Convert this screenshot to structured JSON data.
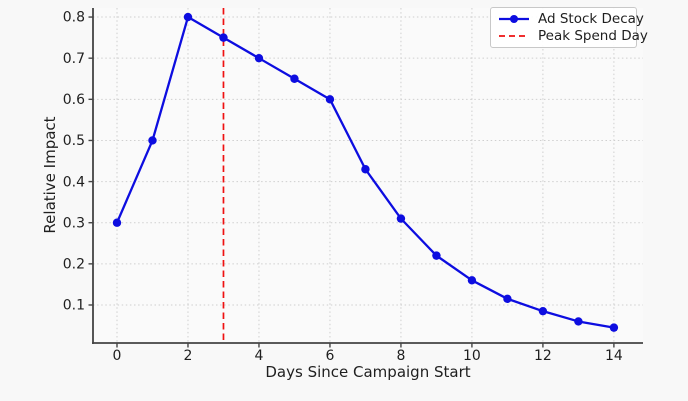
{
  "chart_data": {
    "type": "line",
    "title": "",
    "xlabel": "Days Since Campaign Start",
    "ylabel": "Relative Impact",
    "x": [
      0,
      1,
      2,
      3,
      4,
      5,
      6,
      7,
      8,
      9,
      10,
      11,
      12,
      13,
      14
    ],
    "series": [
      {
        "name": "Ad Stock Decay",
        "color": "#0d0de0",
        "marker": "circle",
        "line_style": "solid",
        "values": [
          0.3,
          0.5,
          0.8,
          0.75,
          0.7,
          0.65,
          0.6,
          0.43,
          0.31,
          0.22,
          0.16,
          0.115,
          0.085,
          0.06,
          0.045
        ]
      }
    ],
    "annotations": [
      {
        "kind": "vline",
        "name": "Peak Spend Day",
        "x": 3,
        "color": "#ee1111",
        "line_style": "dashed"
      }
    ],
    "xticks": [
      0,
      2,
      4,
      6,
      8,
      10,
      12,
      14
    ],
    "xtick_labels": [
      "0",
      "2",
      "4",
      "6",
      "8",
      "10",
      "12",
      "14"
    ],
    "yticks": [
      0.1,
      0.2,
      0.3,
      0.4,
      0.5,
      0.6,
      0.7,
      0.8
    ],
    "ytick_labels": [
      "0.1",
      "0.2",
      "0.3",
      "0.4",
      "0.5",
      "0.6",
      "0.7",
      "0.8"
    ],
    "xlim": [
      -0.676,
      14.82
    ],
    "ylim": [
      0.0076,
      0.822
    ],
    "grid": true,
    "grid_color": "#cfcfcf",
    "axis_color": "#444444",
    "text_color": "#1f1f1f",
    "background": "#f8f8f8",
    "plot_background": "#fafafa",
    "legend_position": "upper right"
  }
}
